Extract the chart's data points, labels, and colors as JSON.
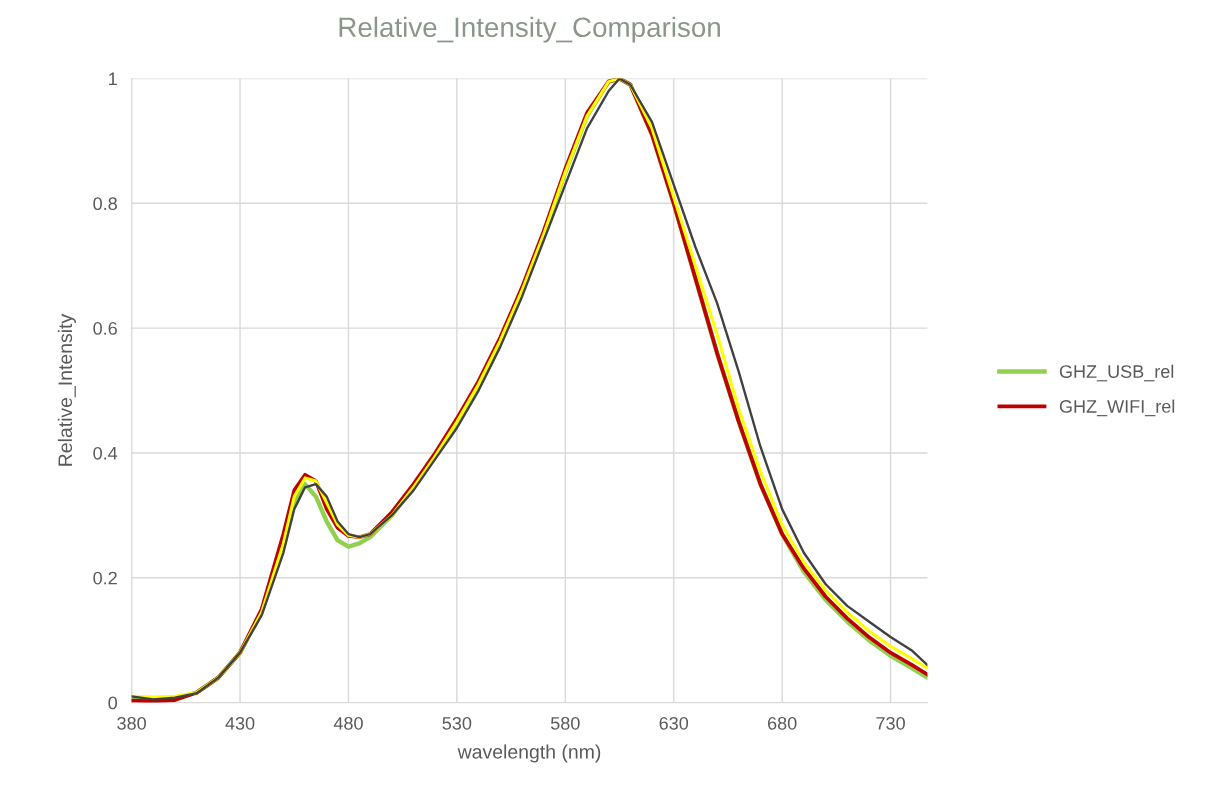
{
  "chart_data": {
    "type": "line",
    "title": "Relative_Intensity_Comparison",
    "xlabel": "wavelength (nm)",
    "ylabel": "Relative_Intensity",
    "x": [
      380,
      390,
      400,
      410,
      420,
      430,
      440,
      450,
      455,
      460,
      465,
      470,
      475,
      480,
      485,
      490,
      500,
      510,
      520,
      530,
      540,
      550,
      560,
      570,
      580,
      590,
      600,
      605,
      610,
      620,
      630,
      640,
      650,
      660,
      670,
      680,
      690,
      700,
      710,
      720,
      730,
      740,
      747
    ],
    "series": [
      {
        "name": "GHZ_USB_rel",
        "color": "#92d050",
        "values": [
          0.005,
          0.004,
          0.006,
          0.016,
          0.04,
          0.08,
          0.145,
          0.25,
          0.32,
          0.35,
          0.33,
          0.29,
          0.26,
          0.25,
          0.255,
          0.265,
          0.3,
          0.345,
          0.395,
          0.45,
          0.51,
          0.58,
          0.66,
          0.75,
          0.85,
          0.94,
          0.995,
          1.0,
          0.99,
          0.91,
          0.8,
          0.68,
          0.56,
          0.45,
          0.35,
          0.27,
          0.21,
          0.165,
          0.13,
          0.1,
          0.075,
          0.055,
          0.04
        ]
      },
      {
        "name": "GHZ_WIFI_rel",
        "color": "#c00000",
        "values": [
          0.003,
          0.002,
          0.004,
          0.016,
          0.04,
          0.08,
          0.15,
          0.27,
          0.34,
          0.365,
          0.355,
          0.31,
          0.28,
          0.267,
          0.265,
          0.27,
          0.305,
          0.35,
          0.4,
          0.455,
          0.515,
          0.585,
          0.665,
          0.755,
          0.855,
          0.945,
          0.995,
          1.0,
          0.99,
          0.91,
          0.8,
          0.68,
          0.56,
          0.45,
          0.35,
          0.27,
          0.215,
          0.17,
          0.135,
          0.105,
          0.08,
          0.06,
          0.045
        ]
      },
      {
        "color": "#ffff00",
        "values": [
          0.01,
          0.009,
          0.01,
          0.016,
          0.04,
          0.08,
          0.145,
          0.255,
          0.33,
          0.36,
          0.355,
          0.32,
          0.285,
          0.268,
          0.265,
          0.27,
          0.3,
          0.345,
          0.395,
          0.45,
          0.51,
          0.58,
          0.66,
          0.75,
          0.85,
          0.94,
          0.995,
          1.0,
          0.99,
          0.92,
          0.81,
          0.7,
          0.59,
          0.47,
          0.37,
          0.285,
          0.225,
          0.18,
          0.145,
          0.115,
          0.09,
          0.07,
          0.055
        ]
      },
      {
        "color": "#404040",
        "values": [
          0.01,
          0.005,
          0.008,
          0.015,
          0.04,
          0.08,
          0.14,
          0.24,
          0.31,
          0.345,
          0.35,
          0.33,
          0.29,
          0.27,
          0.265,
          0.27,
          0.3,
          0.34,
          0.39,
          0.44,
          0.5,
          0.57,
          0.65,
          0.74,
          0.83,
          0.92,
          0.98,
          1.0,
          0.99,
          0.93,
          0.83,
          0.73,
          0.64,
          0.53,
          0.41,
          0.31,
          0.24,
          0.19,
          0.155,
          0.13,
          0.105,
          0.083,
          0.06
        ]
      }
    ],
    "xlim": [
      380,
      747
    ],
    "ylim": [
      0,
      1.0
    ],
    "xticks": [
      380,
      430,
      480,
      530,
      580,
      630,
      680,
      730
    ],
    "yticks": [
      0,
      0.2,
      0.4,
      0.6,
      0.8,
      1
    ],
    "grid": true,
    "legend": "right",
    "marker": "none",
    "line_style": "solid"
  }
}
